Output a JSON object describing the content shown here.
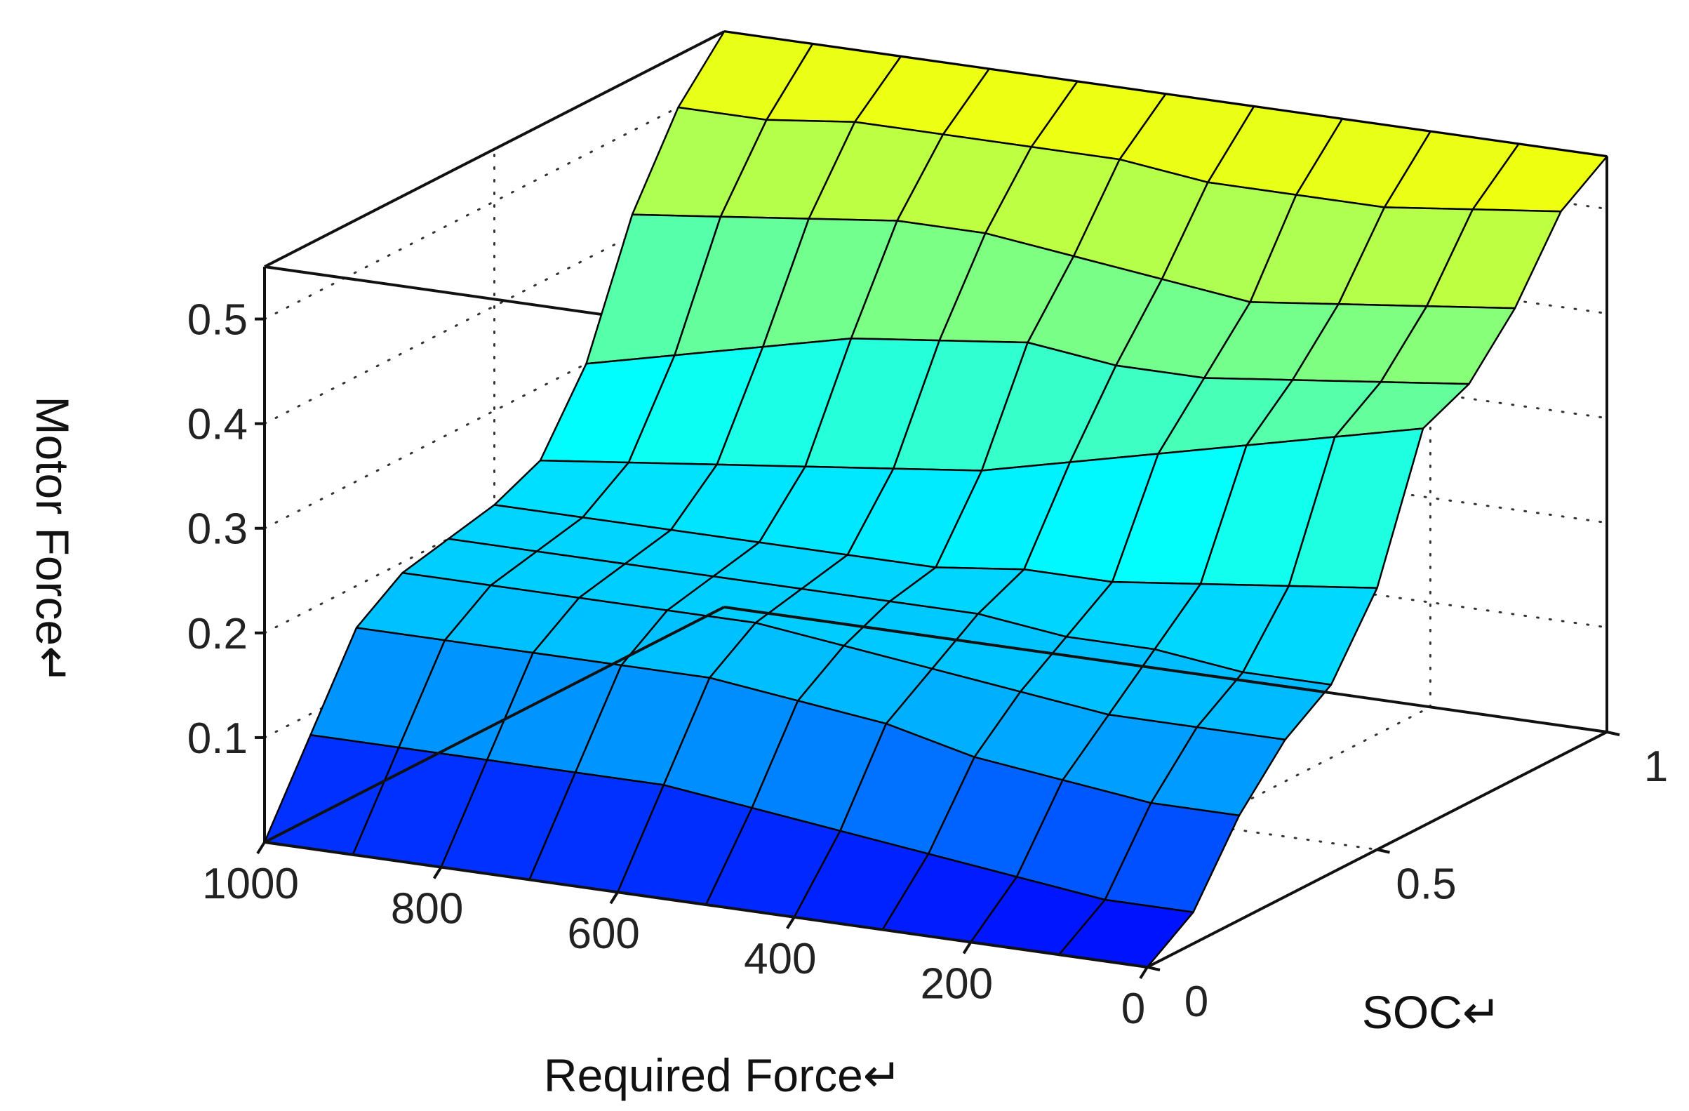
{
  "chart_data": {
    "type": "surface",
    "xlabel": "Required Force↵",
    "ylabel": "SOC↵",
    "zlabel": "Motor Force↵",
    "x_ticks": [
      "1000",
      "800",
      "600",
      "400",
      "200",
      "0"
    ],
    "y_ticks": [
      "0",
      "0.5",
      "1"
    ],
    "z_ticks": [
      "0.1",
      "0.2",
      "0.3",
      "0.4",
      "0.5"
    ],
    "xlim": [
      0,
      1000
    ],
    "ylim": [
      0,
      1
    ],
    "zlim": [
      0,
      0.55
    ],
    "grid": true,
    "colormap": [
      "#0000ff",
      "#00aaff",
      "#00ffff",
      "#80ff80",
      "#ffff00"
    ],
    "x": [
      1000,
      900,
      800,
      700,
      600,
      500,
      400,
      300,
      200,
      100,
      0
    ],
    "y": [
      0,
      0.1,
      0.2,
      0.3,
      0.4,
      0.5,
      0.6,
      0.7,
      0.8,
      0.9,
      1
    ],
    "z": [
      [
        0.0,
        0.0,
        0.0,
        0.0,
        0.0,
        0.0,
        0.0,
        0.0,
        0.0,
        0.0,
        0.0
      ],
      [
        0.08,
        0.08,
        0.08,
        0.08,
        0.08,
        0.07,
        0.06,
        0.05,
        0.04,
        0.03,
        0.03
      ],
      [
        0.16,
        0.16,
        0.16,
        0.16,
        0.16,
        0.15,
        0.14,
        0.12,
        0.11,
        0.1,
        0.1
      ],
      [
        0.19,
        0.19,
        0.19,
        0.19,
        0.19,
        0.18,
        0.17,
        0.16,
        0.15,
        0.15,
        0.15
      ],
      [
        0.2,
        0.2,
        0.2,
        0.2,
        0.2,
        0.2,
        0.2,
        0.19,
        0.19,
        0.18,
        0.18
      ],
      [
        0.21,
        0.21,
        0.21,
        0.21,
        0.21,
        0.21,
        0.22,
        0.22,
        0.23,
        0.24,
        0.25
      ],
      [
        0.23,
        0.24,
        0.25,
        0.26,
        0.27,
        0.28,
        0.3,
        0.32,
        0.34,
        0.36,
        0.38
      ],
      [
        0.3,
        0.32,
        0.34,
        0.36,
        0.37,
        0.38,
        0.37,
        0.37,
        0.38,
        0.39,
        0.4
      ],
      [
        0.42,
        0.43,
        0.44,
        0.45,
        0.45,
        0.44,
        0.43,
        0.42,
        0.43,
        0.44,
        0.45
      ],
      [
        0.5,
        0.5,
        0.51,
        0.51,
        0.51,
        0.51,
        0.5,
        0.5,
        0.5,
        0.51,
        0.52
      ],
      [
        0.55,
        0.55,
        0.55,
        0.55,
        0.55,
        0.55,
        0.55,
        0.55,
        0.55,
        0.55,
        0.55
      ]
    ]
  }
}
